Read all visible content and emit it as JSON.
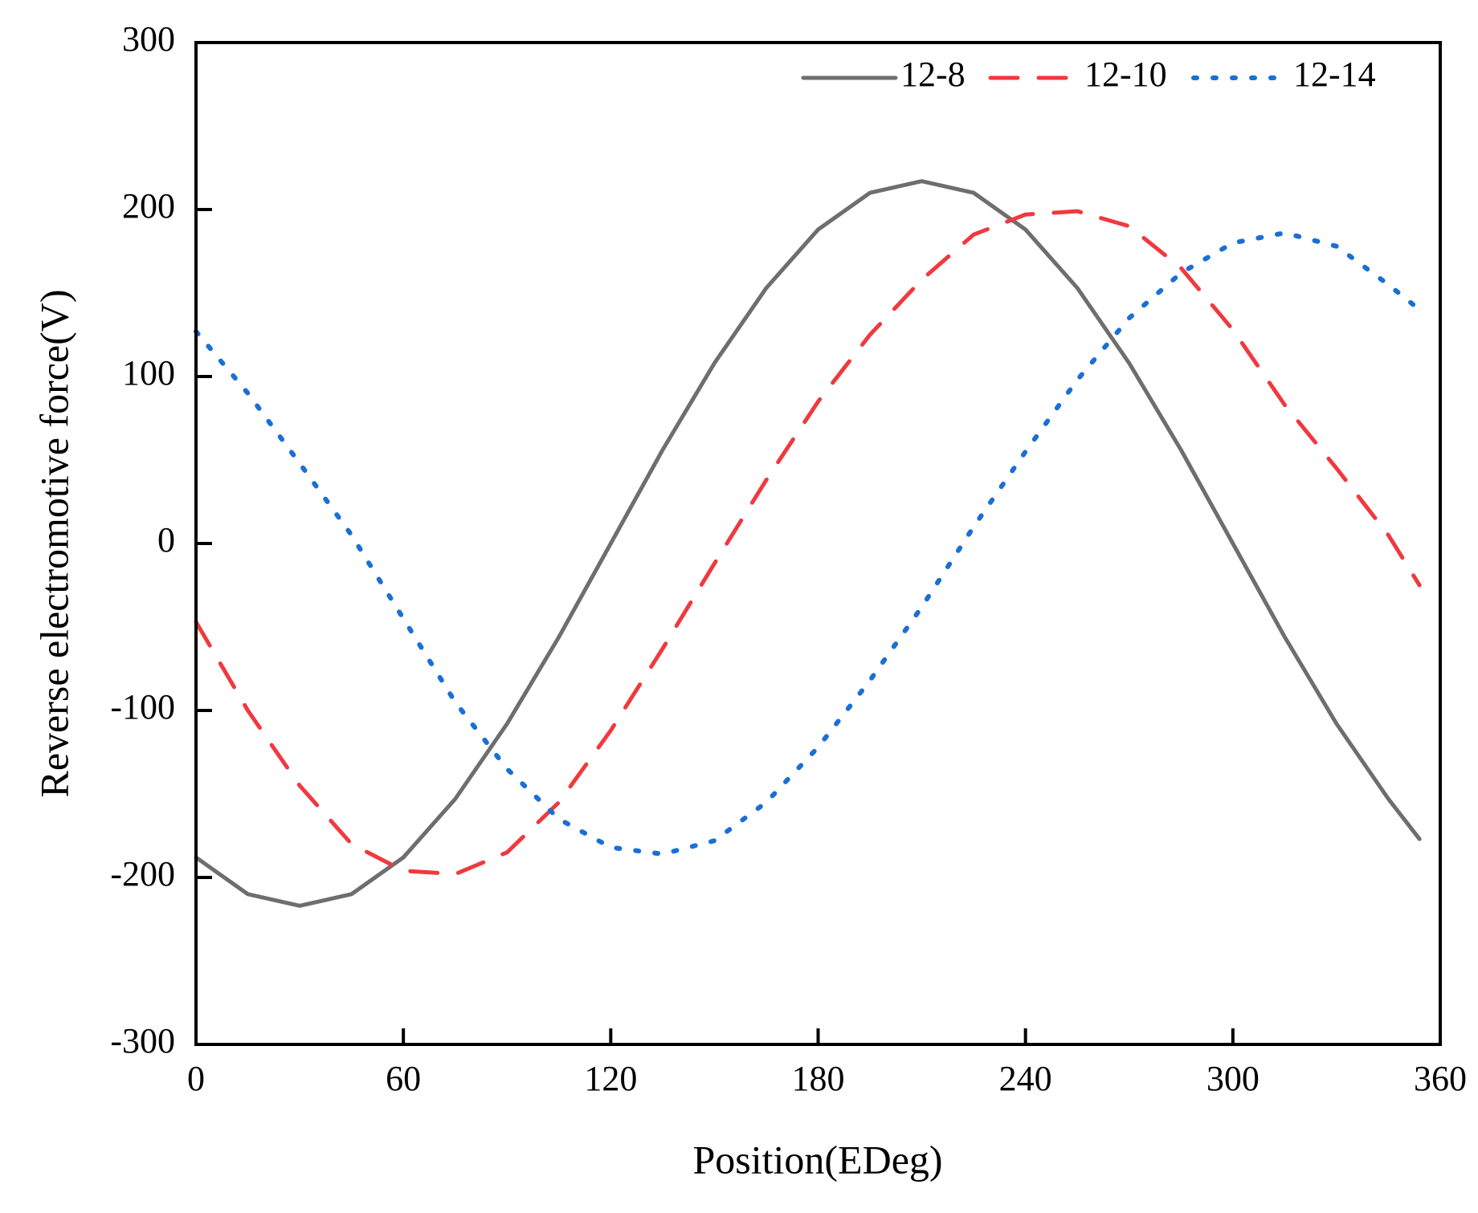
{
  "chart_data": {
    "type": "line",
    "x_label": "Position(EDeg)",
    "y_label": "Reverse electromotive force(V)",
    "x": [
      0,
      15,
      30,
      45,
      60,
      75,
      90,
      105,
      120,
      135,
      150,
      165,
      180,
      195,
      210,
      225,
      240,
      255,
      270,
      285,
      300,
      315,
      330,
      345,
      354
    ],
    "series": [
      {
        "name": "12-8",
        "color": "#6e6e6e",
        "dash": "solid",
        "values": [
          -188,
          -210,
          -217,
          -210,
          -188,
          -153,
          -108,
          -56,
          0,
          56,
          108,
          153,
          188,
          210,
          217,
          210,
          188,
          153,
          108,
          56,
          0,
          -56,
          -108,
          -153,
          -177
        ]
      },
      {
        "name": "12-10",
        "color": "#f0393f",
        "dash": "dashed",
        "values": [
          -47,
          -100,
          -145,
          -180,
          -196,
          -198,
          -185,
          -155,
          -112,
          -63,
          -12,
          38,
          85,
          125,
          158,
          185,
          197,
          199,
          190,
          165,
          128,
          83,
          45,
          5,
          -25
        ]
      },
      {
        "name": "12-14",
        "color": "#1a6fd6",
        "dash": "dotted",
        "values": [
          127,
          90,
          48,
          5,
          -45,
          -95,
          -135,
          -165,
          -182,
          -186,
          -178,
          -155,
          -122,
          -82,
          -38,
          10,
          55,
          98,
          135,
          162,
          180,
          186,
          178,
          155,
          140
        ]
      }
    ],
    "xlim": [
      0,
      360
    ],
    "xticks": [
      0,
      60,
      120,
      180,
      240,
      300,
      360
    ],
    "ylim": [
      -300,
      300
    ],
    "yticks": [
      -300,
      -200,
      -100,
      0,
      100,
      200,
      300
    ],
    "legend": "upper right"
  }
}
